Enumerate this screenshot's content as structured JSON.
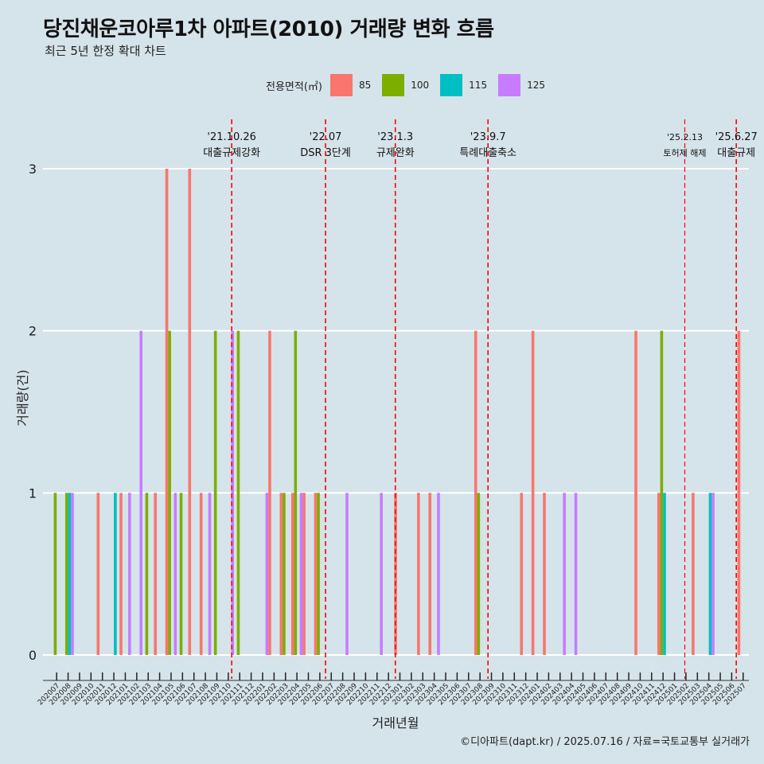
{
  "header": {
    "title": "당진채운코아루1차 아파트(2010) 거래량 변화 흐름",
    "subtitle": "최근 5년 한정 확대 차트"
  },
  "legend": {
    "title": "전용면적(㎡)",
    "items": [
      {
        "label": "85",
        "color": "#F8766D"
      },
      {
        "label": "100",
        "color": "#7CAE00"
      },
      {
        "label": "115",
        "color": "#00BFC4"
      },
      {
        "label": "125",
        "color": "#C77CFF"
      }
    ]
  },
  "caption": "©디아파트(dapt.kr) / 2025.07.16 / 자료=국토교통부 실거래가",
  "chart_data": {
    "type": "bar",
    "xlabel": "거래년월",
    "ylabel": "거래량(건)",
    "ylim": [
      0,
      3
    ],
    "yticks": [
      0,
      1,
      2,
      3
    ],
    "categories": [
      "202007",
      "202008",
      "202009",
      "202010",
      "202011",
      "202012",
      "202101",
      "202102",
      "202103",
      "202104",
      "202105",
      "202106",
      "202107",
      "202108",
      "202109",
      "202110",
      "202111",
      "202112",
      "202201",
      "202202",
      "202203",
      "202204",
      "202205",
      "202206",
      "202207",
      "202208",
      "202209",
      "202210",
      "202211",
      "202212",
      "202301",
      "202302",
      "202303",
      "202304",
      "202305",
      "202306",
      "202307",
      "202308",
      "202309",
      "202310",
      "202311",
      "202312",
      "202401",
      "202402",
      "202403",
      "202404",
      "202405",
      "202406",
      "202407",
      "202408",
      "202409",
      "202410",
      "202411",
      "202412",
      "202501",
      "202502",
      "202503",
      "202504",
      "202505",
      "202506",
      "202507"
    ],
    "series": [
      {
        "name": "85",
        "color": "#F8766D",
        "values": [
          0,
          0,
          0,
          0,
          1,
          0,
          1,
          0,
          0,
          1,
          3,
          0,
          3,
          1,
          0,
          0,
          0,
          0,
          0,
          2,
          1,
          1,
          1,
          1,
          0,
          0,
          0,
          0,
          0,
          0,
          1,
          0,
          1,
          1,
          0,
          0,
          0,
          2,
          0,
          0,
          0,
          1,
          2,
          1,
          0,
          0,
          0,
          0,
          0,
          0,
          0,
          2,
          0,
          1,
          0,
          0,
          1,
          0,
          0,
          0,
          2
        ]
      },
      {
        "name": "100",
        "color": "#7CAE00",
        "values": [
          1,
          1,
          0,
          0,
          0,
          0,
          0,
          0,
          1,
          0,
          2,
          1,
          0,
          0,
          2,
          0,
          2,
          0,
          0,
          0,
          1,
          2,
          0,
          1,
          0,
          0,
          0,
          0,
          0,
          0,
          0,
          0,
          0,
          0,
          0,
          0,
          0,
          1,
          0,
          0,
          0,
          0,
          0,
          0,
          0,
          0,
          0,
          0,
          0,
          0,
          0,
          0,
          0,
          2,
          0,
          0,
          0,
          0,
          0,
          0,
          0
        ]
      },
      {
        "name": "115",
        "color": "#00BFC4",
        "values": [
          0,
          1,
          0,
          0,
          0,
          1,
          0,
          0,
          0,
          0,
          0,
          0,
          0,
          0,
          0,
          0,
          0,
          0,
          0,
          0,
          0,
          0,
          0,
          0,
          0,
          0,
          0,
          0,
          0,
          0,
          0,
          0,
          0,
          0,
          0,
          0,
          0,
          0,
          0,
          0,
          0,
          0,
          0,
          0,
          0,
          0,
          0,
          0,
          0,
          0,
          0,
          0,
          0,
          1,
          0,
          0,
          0,
          1,
          0,
          0,
          0
        ]
      },
      {
        "name": "125",
        "color": "#C77CFF",
        "values": [
          0,
          1,
          0,
          0,
          0,
          0,
          1,
          2,
          0,
          0,
          1,
          0,
          0,
          1,
          0,
          2,
          0,
          0,
          1,
          0,
          0,
          1,
          0,
          0,
          0,
          1,
          0,
          0,
          1,
          0,
          0,
          0,
          0,
          1,
          0,
          0,
          0,
          0,
          0,
          0,
          0,
          0,
          0,
          0,
          1,
          1,
          0,
          0,
          0,
          0,
          0,
          0,
          0,
          0,
          0,
          0,
          0,
          1,
          0,
          0,
          0
        ]
      }
    ],
    "events": [
      {
        "date": "'21.10.26",
        "label": "대출규제강화",
        "category": "202110",
        "offset": 0.8
      },
      {
        "date": "'22.07",
        "label": "DSR 3단계",
        "category": "202207",
        "offset": 0.0
      },
      {
        "date": "'23.1.3",
        "label": "규제완화",
        "category": "202301",
        "offset": 0.1
      },
      {
        "date": "'23.9.7",
        "label": "특례대출축소",
        "category": "202309",
        "offset": 0.2
      },
      {
        "date": "'25.2.13",
        "label": "토허제 해제",
        "category": "202502",
        "offset": 0.4,
        "small": true
      },
      {
        "date": "'25.6.27",
        "label": "대출규제",
        "category": "202506",
        "offset": 0.9
      }
    ]
  }
}
